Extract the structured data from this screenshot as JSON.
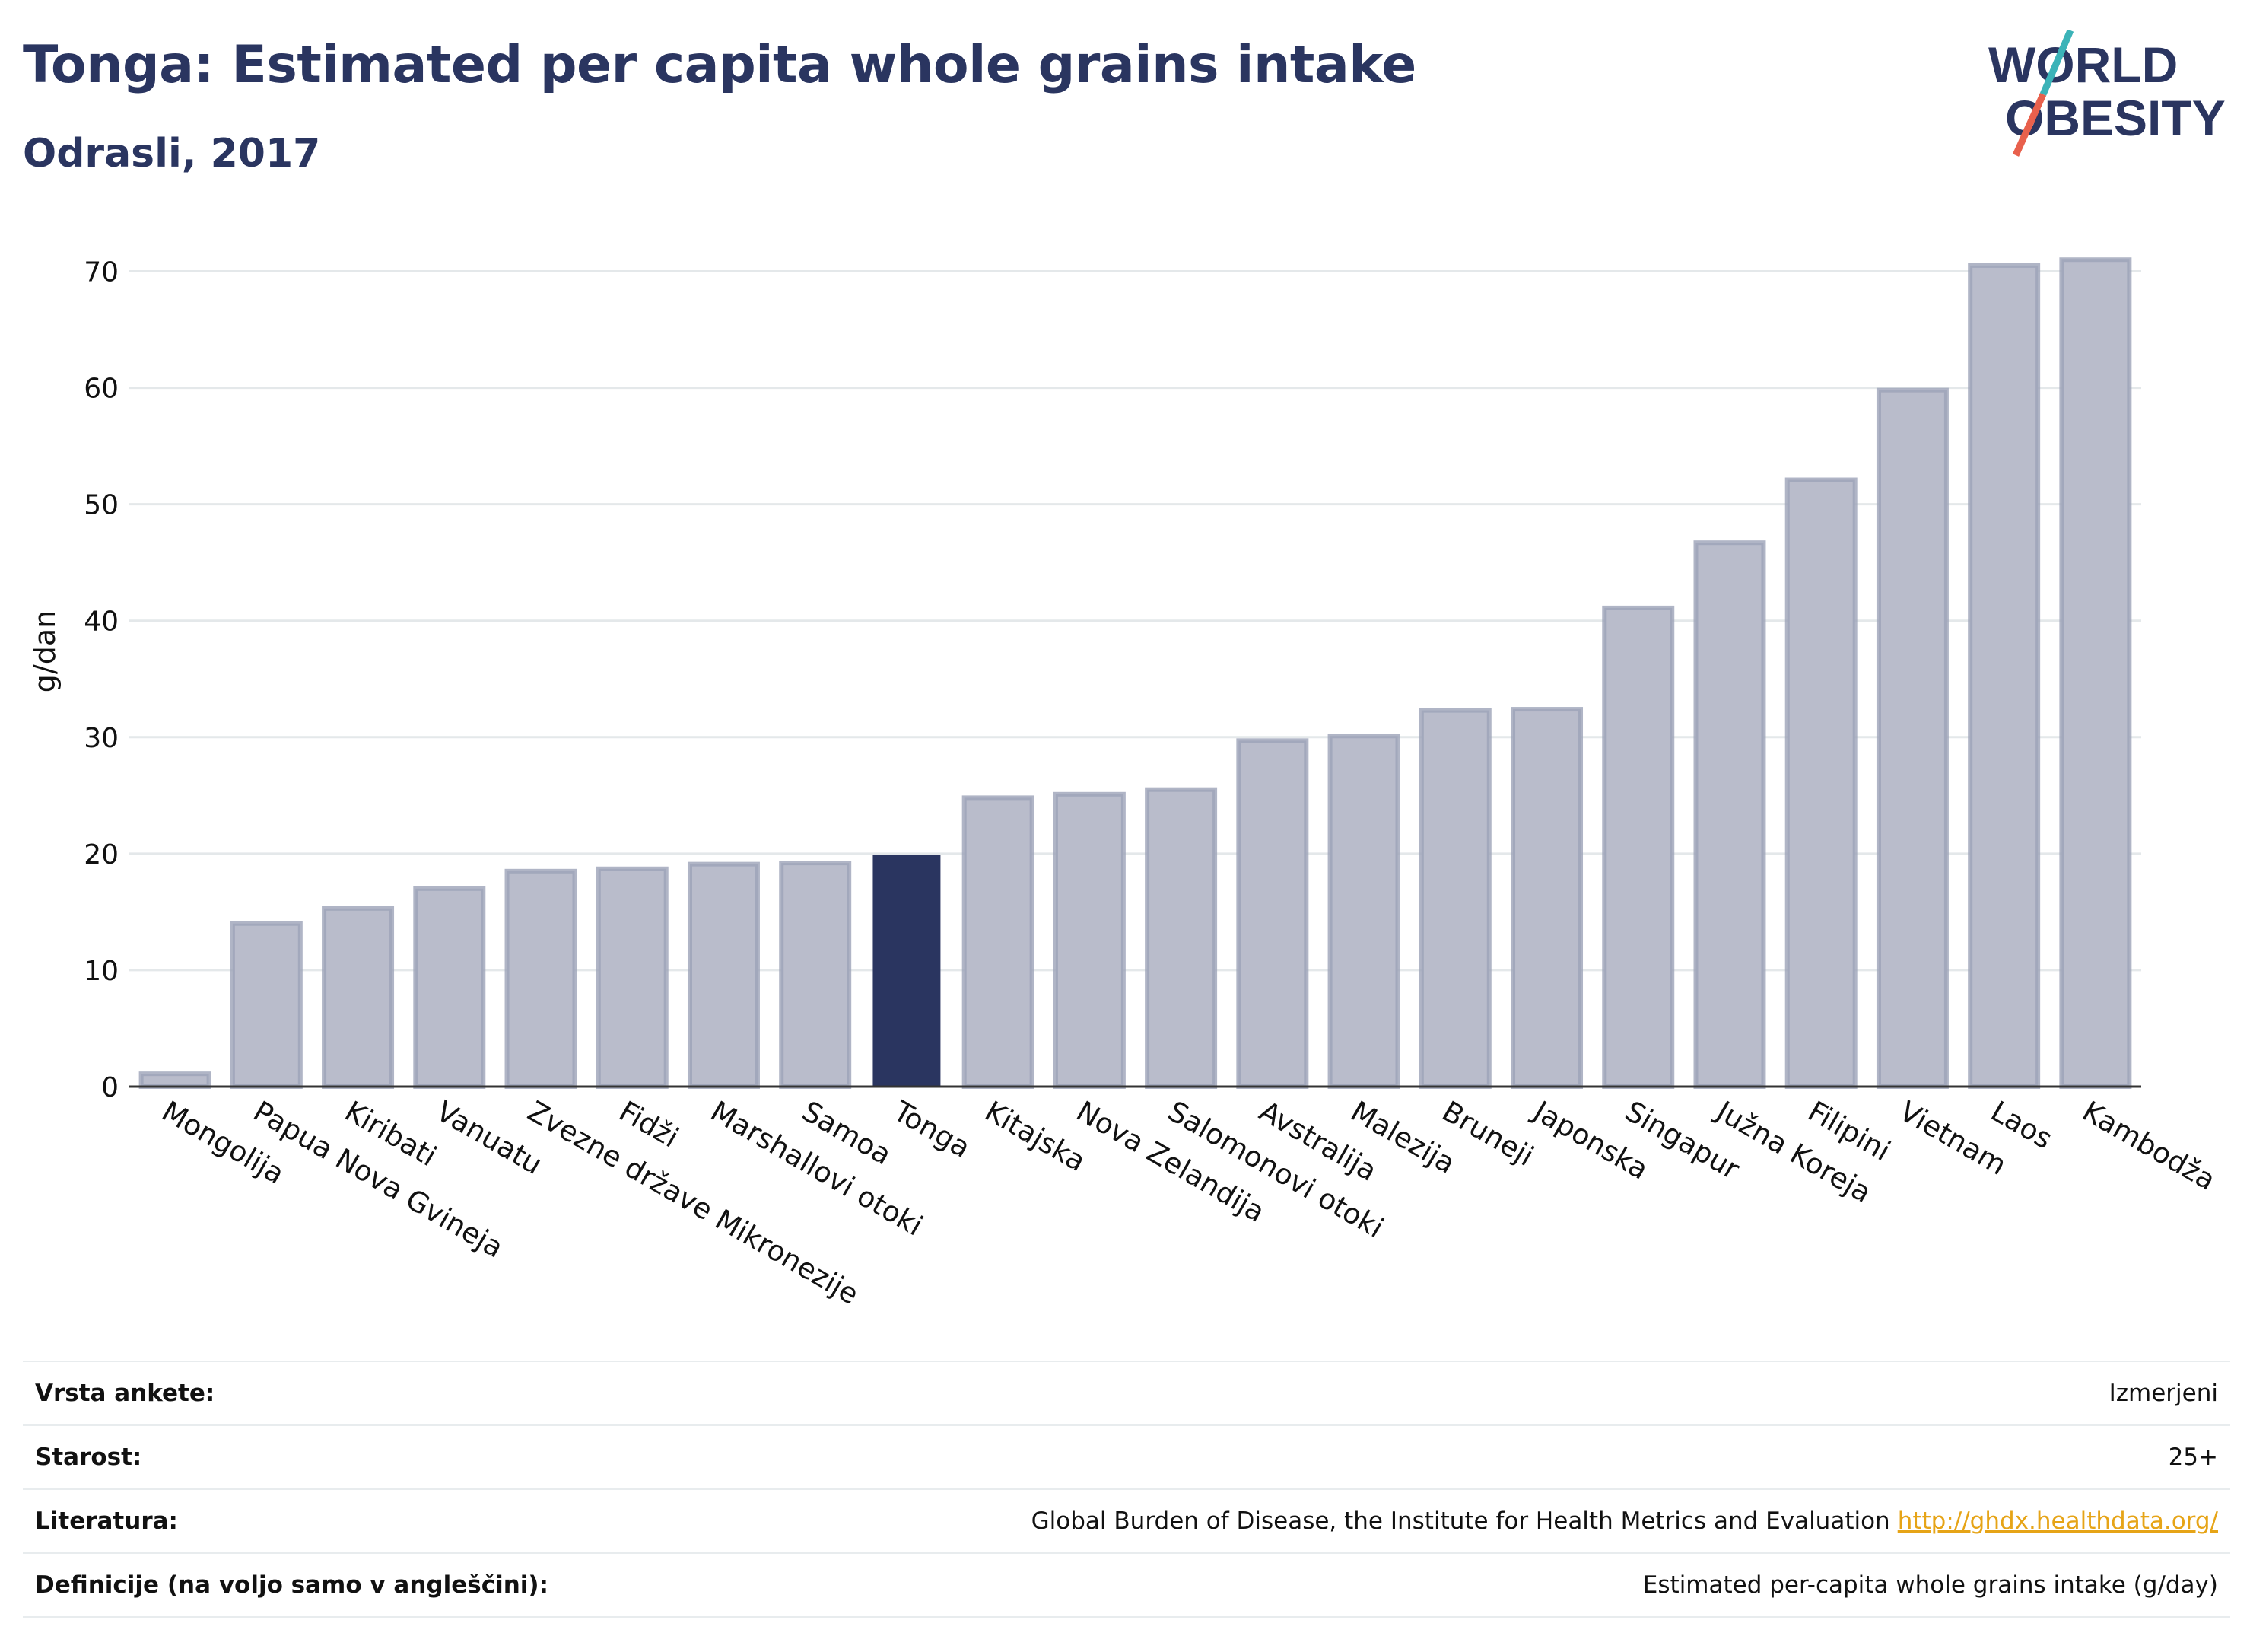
{
  "header": {
    "title": "Tonga: Estimated per capita whole grains intake",
    "subtitle": "Odrasli, 2017"
  },
  "logo": {
    "line1": "WORLD",
    "line2": "OBESITY",
    "accent_teal": "#3bb3b8",
    "accent_coral": "#e8604c"
  },
  "colors": {
    "bar": "#b9bccb",
    "bar_stroke": "#9ca2b8",
    "highlight": "#2a3560",
    "grid": "#e4e8ea",
    "axis": "#333333"
  },
  "chart_data": {
    "type": "bar",
    "title": "Tonga: Estimated per capita whole grains intake",
    "subtitle": "Odrasli, 2017",
    "xlabel": "",
    "ylabel": "g/dan",
    "ylim": [
      0,
      75
    ],
    "yticks": [
      0,
      10,
      20,
      30,
      40,
      50,
      60,
      70
    ],
    "grid": true,
    "highlight": "Tonga",
    "categories": [
      "Mongolija",
      "Papua Nova Gvineja",
      "Kiribati",
      "Vanuatu",
      "Zvezne države Mikronezije",
      "Fidži",
      "Marshallovi otoki",
      "Samoa",
      "Tonga",
      "Kitajska",
      "Nova Zelandija",
      "Salomonovi otoki",
      "Avstralija",
      "Malezija",
      "Bruneji",
      "Japonska",
      "Singapur",
      "Južna Koreja",
      "Filipini",
      "Vietnam",
      "Laos",
      "Kambodža"
    ],
    "values": [
      1.1,
      14,
      15.3,
      17,
      18.5,
      18.7,
      19.1,
      19.2,
      19.9,
      24.8,
      25.1,
      25.5,
      29.7,
      30.1,
      32.3,
      32.4,
      41.1,
      46.7,
      52.1,
      59.8,
      70.5,
      71
    ]
  },
  "meta": {
    "rows": [
      {
        "label": "Vrsta ankete:",
        "value": "Izmerjeni"
      },
      {
        "label": "Starost:",
        "value": "25+"
      },
      {
        "label": "Literatura:",
        "value": "Global Burden of Disease, the Institute for Health Metrics and Evaluation",
        "link": "http://ghdx.healthdata.org/"
      },
      {
        "label": "Definicije (na voljo samo v angleščini):",
        "value": "Estimated per-capita whole grains intake (g/day)"
      }
    ]
  }
}
